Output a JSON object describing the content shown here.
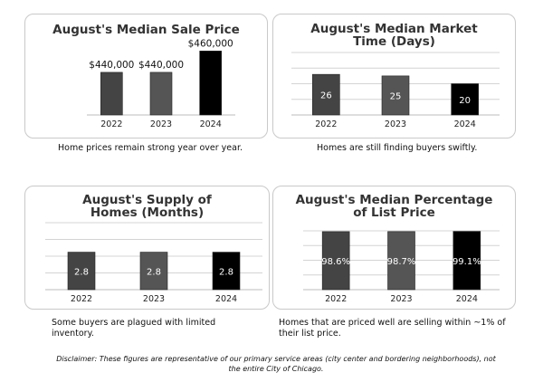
{
  "charts": [
    {
      "title": "August's Median Sale Price",
      "caption": "Home prices remain strong year over year.",
      "label_position": "above"
    },
    {
      "title": "August's Median Market Time (Days)",
      "caption": "Homes are still finding buyers swiftly.",
      "label_position": "inside"
    },
    {
      "title": "August's Supply of Homes (Months)",
      "caption": "Some buyers are plagued with limited inventory.",
      "label_position": "inside"
    },
    {
      "title": "August's Median Percentage of List Price",
      "caption": "Homes that are priced well are selling within ~1% of their list price.",
      "label_position": "inside"
    }
  ],
  "chart_data": [
    {
      "type": "bar",
      "title": "August's Median Sale Price",
      "categories": [
        "2022",
        "2023",
        "2024"
      ],
      "values": [
        440000,
        440000,
        460000
      ],
      "data_labels": [
        "$440,000",
        "$440,000",
        "$460,000"
      ],
      "ylim": [
        400000,
        462000
      ],
      "grid": false,
      "colors": [
        "#444444",
        "#555555",
        "#000000"
      ]
    },
    {
      "type": "bar",
      "title": "August's Median Market Time (Days)",
      "categories": [
        "2022",
        "2023",
        "2024"
      ],
      "values": [
        26,
        25,
        20
      ],
      "data_labels": [
        "26",
        "25",
        "20"
      ],
      "ylim": [
        0,
        40
      ],
      "grid": true,
      "colors": [
        "#444444",
        "#555555",
        "#000000"
      ]
    },
    {
      "type": "bar",
      "title": "August's Supply of Homes (Months)",
      "categories": [
        "2022",
        "2023",
        "2024"
      ],
      "values": [
        2.8,
        2.8,
        2.8
      ],
      "data_labels": [
        "2.8",
        "2.8",
        "2.8"
      ],
      "ylim": [
        0,
        5
      ],
      "grid": true,
      "colors": [
        "#444444",
        "#555555",
        "#000000"
      ]
    },
    {
      "type": "bar",
      "title": "August's Median Percentage of List Price",
      "categories": [
        "2022",
        "2023",
        "2024"
      ],
      "values": [
        98.6,
        98.7,
        99.1
      ],
      "data_labels": [
        "98.6%",
        "98.7%",
        "99.1%"
      ],
      "ylim": [
        0,
        100
      ],
      "grid": true,
      "colors": [
        "#444444",
        "#555555",
        "#000000"
      ]
    }
  ],
  "disclaimer": "Disclaimer: These figures are representative of our primary service areas (city center and bordering neighborhoods), not the entire City of Chicago."
}
